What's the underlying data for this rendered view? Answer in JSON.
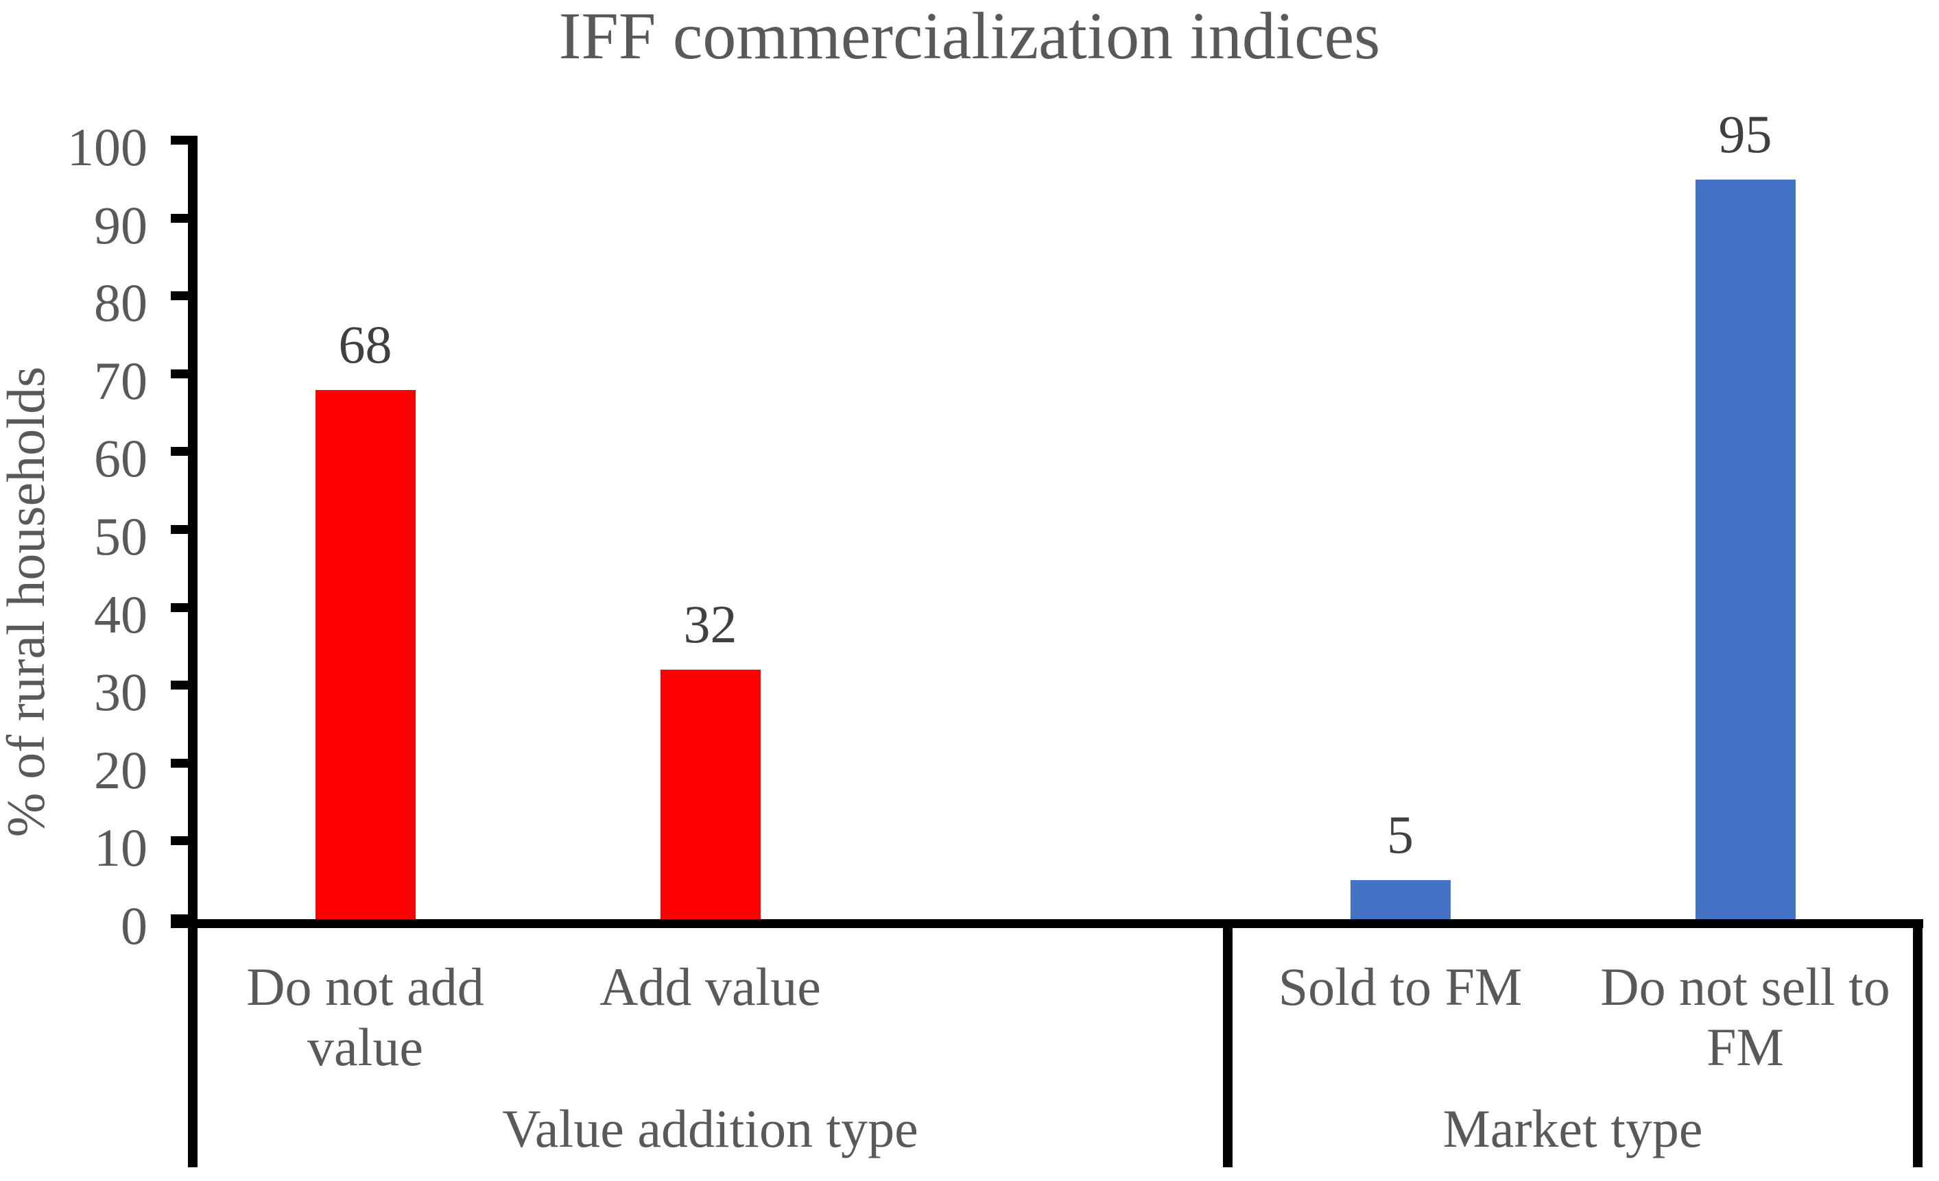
{
  "chart_data": {
    "type": "bar",
    "title": "IFF commercialization indices",
    "xlabel": "",
    "ylabel": "% of rural households",
    "ylim": [
      0,
      100
    ],
    "yticks": [
      0,
      10,
      20,
      30,
      40,
      50,
      60,
      70,
      80,
      90,
      100
    ],
    "grid": false,
    "legend": false,
    "data_labels_visible": true,
    "groups": [
      {
        "label": "Value addition type",
        "series_color": "#ff0000",
        "categories": [
          "Do not add value",
          "Add value"
        ],
        "values": [
          68,
          32
        ]
      },
      {
        "label": "Market type",
        "series_color": "#4472c4",
        "categories": [
          "Sold to FM",
          "Do not sell to FM"
        ],
        "values": [
          5,
          95
        ]
      }
    ]
  },
  "colors": {
    "background": "#ffffff",
    "axis_line": "#000000",
    "title_text": "#595959",
    "axis_text": "#595959",
    "data_label_text": "#404040",
    "red_series": "#ff0000",
    "blue_series": "#4472c4"
  }
}
